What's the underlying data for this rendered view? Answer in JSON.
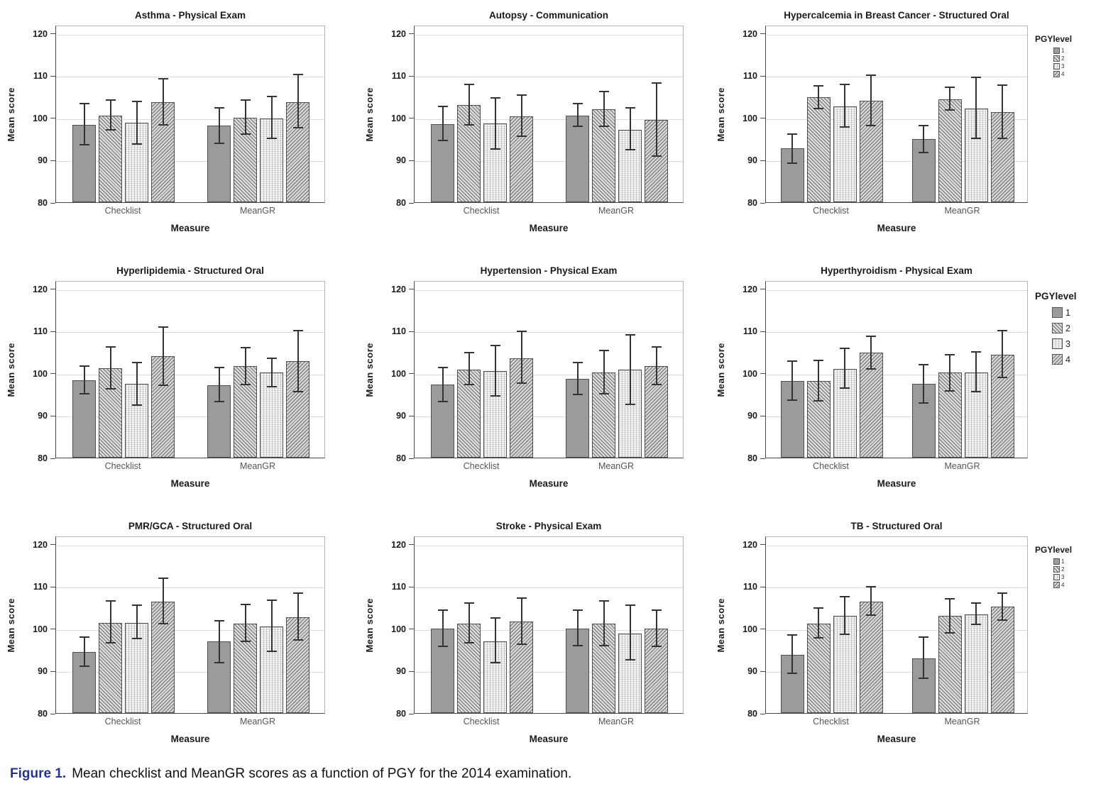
{
  "figure": {
    "caption_label": "Figure 1.",
    "caption_text": "Mean checklist and MeanGR scores as a function of PGY for the 2014 examination."
  },
  "styles": {
    "background": "#ffffff",
    "caption_label_color": "#27348b",
    "error_bar_color": "#333333",
    "gridline_color": "#dcdcdc",
    "axis_color": "#4a4a4a",
    "pgy_patterns": {
      "1": "solid-gray #9b9b9b",
      "2": "diagonal-hatch-down #dcdcdc",
      "3": "dotted-vertical-light #f6f6f6",
      "4": "diagonal-hatch-up #d6d6d6"
    }
  },
  "chart_data": {
    "type": "bar",
    "ylabel": "Mean score",
    "xlabel": "Measure",
    "ylim": [
      80,
      122
    ],
    "yticks": [
      80,
      90,
      100,
      110,
      120
    ],
    "categories": [
      "Checklist",
      "MeanGR"
    ],
    "legend_title": "PGYlevel",
    "legend_items": [
      "1",
      "2",
      "3",
      "4"
    ],
    "grid": "horizontal",
    "error_bars": "95% CI",
    "charts": [
      {
        "title": "Asthma - Physical Exam",
        "legend": "none",
        "series": [
          {
            "name": "1",
            "values": [
              98.4,
              98.1
            ],
            "err_lo": [
              93.5,
              93.8
            ],
            "err_hi": [
              103.4,
              102.4
            ]
          },
          {
            "name": "2",
            "values": [
              100.5,
              100.0
            ],
            "err_lo": [
              97.0,
              96.0
            ],
            "err_hi": [
              104.2,
              104.2
            ]
          },
          {
            "name": "3",
            "values": [
              98.8,
              99.9
            ],
            "err_lo": [
              93.7,
              94.9
            ],
            "err_hi": [
              103.9,
              105.1
            ]
          },
          {
            "name": "4",
            "values": [
              103.7,
              103.7
            ],
            "err_lo": [
              98.2,
              97.4
            ],
            "err_hi": [
              109.3,
              110.2
            ]
          }
        ]
      },
      {
        "title": "Autopsy - Communication",
        "legend": "none",
        "series": [
          {
            "name": "1",
            "values": [
              98.5,
              100.5
            ],
            "err_lo": [
              94.5,
              97.8
            ],
            "err_hi": [
              102.7,
              103.4
            ]
          },
          {
            "name": "2",
            "values": [
              103.0,
              102.0
            ],
            "err_lo": [
              98.1,
              97.9
            ],
            "err_hi": [
              107.9,
              106.2
            ]
          },
          {
            "name": "3",
            "values": [
              98.6,
              97.2
            ],
            "err_lo": [
              92.5,
              92.2
            ],
            "err_hi": [
              104.7,
              102.3
            ]
          },
          {
            "name": "4",
            "values": [
              100.4,
              99.5
            ],
            "err_lo": [
              95.5,
              90.8
            ],
            "err_hi": [
              105.3,
              108.2
            ]
          }
        ]
      },
      {
        "title": "Hypercalcemia in Breast Cancer - Structured Oral",
        "legend": "small",
        "series": [
          {
            "name": "1",
            "values": [
              92.7,
              95.0
            ],
            "err_lo": [
              89.0,
              91.6
            ],
            "err_hi": [
              96.2,
              98.1
            ]
          },
          {
            "name": "2",
            "values": [
              104.8,
              104.4
            ],
            "err_lo": [
              102.0,
              101.6
            ],
            "err_hi": [
              107.5,
              107.2
            ]
          },
          {
            "name": "3",
            "values": [
              102.7,
              102.2
            ],
            "err_lo": [
              97.7,
              94.9
            ],
            "err_hi": [
              107.9,
              109.6
            ]
          },
          {
            "name": "4",
            "values": [
              104.1,
              101.3
            ],
            "err_lo": [
              98.0,
              94.9
            ],
            "err_hi": [
              110.1,
              107.7
            ]
          }
        ]
      },
      {
        "title": "Hyperlipidemia - Structured Oral",
        "legend": "none",
        "series": [
          {
            "name": "1",
            "values": [
              98.3,
              97.2
            ],
            "err_lo": [
              95.0,
              93.1
            ],
            "err_hi": [
              101.6,
              101.3
            ]
          },
          {
            "name": "2",
            "values": [
              101.2,
              101.6
            ],
            "err_lo": [
              96.2,
              97.2
            ],
            "err_hi": [
              106.2,
              106.1
            ]
          },
          {
            "name": "3",
            "values": [
              97.4,
              100.1
            ],
            "err_lo": [
              92.3,
              96.7
            ],
            "err_hi": [
              102.5,
              103.5
            ]
          },
          {
            "name": "4",
            "values": [
              104.0,
              102.8
            ],
            "err_lo": [
              97.0,
              95.5
            ],
            "err_hi": [
              111.0,
              110.0
            ]
          }
        ]
      },
      {
        "title": "Hypertension - Physical Exam",
        "legend": "none",
        "series": [
          {
            "name": "1",
            "values": [
              97.3,
              98.7
            ],
            "err_lo": [
              93.1,
              94.8
            ],
            "err_hi": [
              101.3,
              102.5
            ]
          },
          {
            "name": "2",
            "values": [
              100.9,
              100.2
            ],
            "err_lo": [
              97.1,
              94.9
            ],
            "err_hi": [
              104.9,
              105.4
            ]
          },
          {
            "name": "3",
            "values": [
              100.5,
              100.8
            ],
            "err_lo": [
              94.5,
              92.4
            ],
            "err_hi": [
              106.6,
              109.0
            ]
          },
          {
            "name": "4",
            "values": [
              103.6,
              101.7
            ],
            "err_lo": [
              97.4,
              97.1
            ],
            "err_hi": [
              109.9,
              106.3
            ]
          }
        ]
      },
      {
        "title": "Hyperthyroidism - Physical Exam",
        "legend": "large",
        "series": [
          {
            "name": "1",
            "values": [
              98.1,
              97.5
            ],
            "err_lo": [
              93.4,
              92.8
            ],
            "err_hi": [
              102.8,
              102.1
            ]
          },
          {
            "name": "2",
            "values": [
              98.2,
              100.1
            ],
            "err_lo": [
              93.2,
              95.7
            ],
            "err_hi": [
              103.1,
              104.4
            ]
          },
          {
            "name": "3",
            "values": [
              101.0,
              100.2
            ],
            "err_lo": [
              96.3,
              95.4
            ],
            "err_hi": [
              105.8,
              105.0
            ]
          },
          {
            "name": "4",
            "values": [
              104.9,
              104.4
            ],
            "err_lo": [
              100.9,
              98.8
            ],
            "err_hi": [
              108.8,
              110.0
            ]
          }
        ]
      },
      {
        "title": "PMR/GCA - Structured Oral",
        "legend": "none",
        "series": [
          {
            "name": "1",
            "values": [
              94.5,
              96.9
            ],
            "err_lo": [
              90.9,
              91.8
            ],
            "err_hi": [
              98.0,
              101.9
            ]
          },
          {
            "name": "2",
            "values": [
              101.3,
              101.2
            ],
            "err_lo": [
              96.4,
              96.8
            ],
            "err_hi": [
              106.5,
              105.7
            ]
          },
          {
            "name": "3",
            "values": [
              101.4,
              100.5
            ],
            "err_lo": [
              97.5,
              94.5
            ],
            "err_hi": [
              105.5,
              106.8
            ]
          },
          {
            "name": "4",
            "values": [
              106.4,
              102.7
            ],
            "err_lo": [
              101.0,
              97.1
            ],
            "err_hi": [
              111.9,
              108.4
            ]
          }
        ]
      },
      {
        "title": "Stroke - Physical Exam",
        "legend": "none",
        "series": [
          {
            "name": "1",
            "values": [
              100.0,
              100.0
            ],
            "err_lo": [
              95.6,
              95.8
            ],
            "err_hi": [
              104.4,
              104.3
            ]
          },
          {
            "name": "2",
            "values": [
              101.2,
              101.1
            ],
            "err_lo": [
              96.5,
              95.8
            ],
            "err_hi": [
              106.0,
              106.5
            ]
          },
          {
            "name": "3",
            "values": [
              97.0,
              98.9
            ],
            "err_lo": [
              91.7,
              92.4
            ],
            "err_hi": [
              102.6,
              105.5
            ]
          },
          {
            "name": "4",
            "values": [
              101.6,
              100.0
            ],
            "err_lo": [
              96.1,
              95.7
            ],
            "err_hi": [
              107.2,
              104.3
            ]
          }
        ]
      },
      {
        "title": "TB - Structured Oral",
        "legend": "small",
        "series": [
          {
            "name": "1",
            "values": [
              93.8,
              93.0
            ],
            "err_lo": [
              89.2,
              88.1
            ],
            "err_hi": [
              98.5,
              98.0
            ]
          },
          {
            "name": "2",
            "values": [
              101.1,
              103.0
            ],
            "err_lo": [
              97.6,
              98.9
            ],
            "err_hi": [
              104.8,
              107.1
            ]
          },
          {
            "name": "3",
            "values": [
              103.0,
              103.4
            ],
            "err_lo": [
              98.5,
              100.8
            ],
            "err_hi": [
              107.5,
              106.0
            ]
          },
          {
            "name": "4",
            "values": [
              106.4,
              105.2
            ],
            "err_lo": [
              103.0,
              101.8
            ],
            "err_hi": [
              109.9,
              108.4
            ]
          }
        ]
      }
    ]
  }
}
